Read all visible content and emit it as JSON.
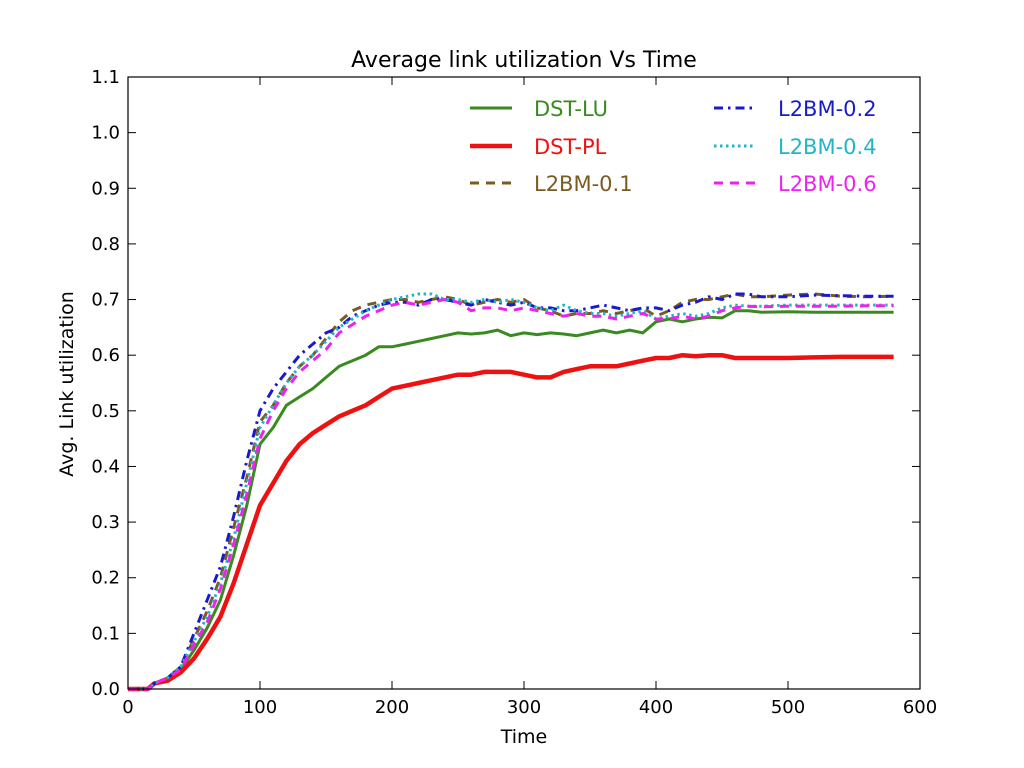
{
  "chart_data": {
    "type": "line",
    "title": "Average link utilization Vs Time",
    "xlabel": "Time",
    "ylabel": "Avg. Link utilization",
    "xlim": [
      0,
      600
    ],
    "ylim": [
      0.0,
      1.1
    ],
    "xticks": [
      "0",
      "100",
      "200",
      "300",
      "400",
      "500",
      "600"
    ],
    "yticks": [
      "0.0",
      "0.1",
      "0.2",
      "0.3",
      "0.4",
      "0.5",
      "0.6",
      "0.7",
      "0.8",
      "0.9",
      "1.0",
      "1.1"
    ],
    "grid": false,
    "legend_position": "top-right",
    "series": [
      {
        "name": "DST-LU",
        "color": "#3a8a22",
        "style": "solid",
        "x": [
          0,
          15,
          20,
          30,
          40,
          50,
          60,
          70,
          80,
          90,
          100,
          110,
          120,
          130,
          140,
          150,
          160,
          170,
          180,
          190,
          200,
          210,
          220,
          230,
          240,
          250,
          260,
          270,
          280,
          290,
          300,
          310,
          320,
          330,
          340,
          350,
          360,
          370,
          380,
          390,
          400,
          410,
          420,
          430,
          440,
          450,
          460,
          470,
          480,
          500,
          520,
          540,
          560,
          580
        ],
        "y": [
          0.0,
          0.0,
          0.01,
          0.02,
          0.035,
          0.07,
          0.11,
          0.16,
          0.24,
          0.33,
          0.44,
          0.47,
          0.51,
          0.525,
          0.54,
          0.56,
          0.58,
          0.59,
          0.6,
          0.615,
          0.615,
          0.62,
          0.625,
          0.63,
          0.635,
          0.64,
          0.638,
          0.64,
          0.645,
          0.635,
          0.64,
          0.637,
          0.64,
          0.638,
          0.635,
          0.64,
          0.645,
          0.64,
          0.645,
          0.64,
          0.66,
          0.665,
          0.66,
          0.665,
          0.668,
          0.667,
          0.68,
          0.68,
          0.677,
          0.678,
          0.677,
          0.677,
          0.677,
          0.677
        ]
      },
      {
        "name": "DST-PL",
        "color": "#ee1111",
        "style": "solid",
        "x": [
          0,
          15,
          20,
          30,
          40,
          50,
          60,
          70,
          80,
          90,
          100,
          110,
          120,
          130,
          140,
          150,
          160,
          170,
          180,
          190,
          200,
          210,
          220,
          230,
          240,
          250,
          260,
          270,
          280,
          290,
          300,
          310,
          320,
          330,
          340,
          350,
          360,
          370,
          380,
          390,
          400,
          410,
          420,
          430,
          440,
          450,
          460,
          470,
          480,
          500,
          520,
          540,
          560,
          580
        ],
        "y": [
          0.0,
          0.0,
          0.01,
          0.015,
          0.03,
          0.055,
          0.09,
          0.13,
          0.19,
          0.26,
          0.33,
          0.37,
          0.41,
          0.44,
          0.46,
          0.475,
          0.49,
          0.5,
          0.51,
          0.525,
          0.54,
          0.545,
          0.55,
          0.555,
          0.56,
          0.565,
          0.565,
          0.57,
          0.57,
          0.57,
          0.565,
          0.56,
          0.56,
          0.57,
          0.575,
          0.58,
          0.58,
          0.58,
          0.585,
          0.59,
          0.595,
          0.595,
          0.6,
          0.598,
          0.6,
          0.6,
          0.595,
          0.595,
          0.595,
          0.595,
          0.596,
          0.597,
          0.597,
          0.597
        ]
      },
      {
        "name": "L2BM-0.1",
        "color": "#7a5b22",
        "style": "dashed",
        "x": [
          0,
          15,
          20,
          30,
          40,
          50,
          60,
          70,
          80,
          90,
          100,
          110,
          120,
          130,
          140,
          150,
          160,
          170,
          180,
          190,
          200,
          210,
          220,
          230,
          240,
          250,
          260,
          270,
          280,
          290,
          300,
          310,
          320,
          330,
          340,
          350,
          360,
          370,
          380,
          390,
          400,
          410,
          420,
          430,
          440,
          450,
          460,
          470,
          480,
          500,
          520,
          540,
          560,
          580
        ],
        "y": [
          0.0,
          0.0,
          0.01,
          0.02,
          0.04,
          0.09,
          0.14,
          0.2,
          0.29,
          0.38,
          0.48,
          0.51,
          0.55,
          0.58,
          0.6,
          0.63,
          0.66,
          0.68,
          0.69,
          0.695,
          0.7,
          0.7,
          0.695,
          0.7,
          0.705,
          0.7,
          0.69,
          0.695,
          0.7,
          0.695,
          0.7,
          0.685,
          0.68,
          0.67,
          0.675,
          0.675,
          0.68,
          0.675,
          0.68,
          0.685,
          0.67,
          0.68,
          0.695,
          0.7,
          0.7,
          0.705,
          0.71,
          0.705,
          0.705,
          0.708,
          0.71,
          0.706,
          0.705,
          0.706
        ]
      },
      {
        "name": "L2BM-0.2",
        "color": "#1a1acc",
        "style": "dashdot",
        "x": [
          0,
          15,
          20,
          30,
          40,
          50,
          60,
          70,
          80,
          90,
          100,
          110,
          120,
          130,
          140,
          150,
          160,
          170,
          180,
          190,
          200,
          210,
          220,
          230,
          240,
          250,
          260,
          270,
          280,
          290,
          300,
          310,
          320,
          330,
          340,
          350,
          360,
          370,
          380,
          390,
          400,
          410,
          420,
          430,
          440,
          450,
          460,
          470,
          480,
          500,
          520,
          540,
          560,
          580
        ],
        "y": [
          0.0,
          0.0,
          0.01,
          0.02,
          0.04,
          0.1,
          0.16,
          0.22,
          0.31,
          0.41,
          0.5,
          0.54,
          0.57,
          0.6,
          0.62,
          0.64,
          0.65,
          0.67,
          0.68,
          0.69,
          0.695,
          0.695,
          0.69,
          0.7,
          0.7,
          0.695,
          0.69,
          0.7,
          0.695,
          0.69,
          0.695,
          0.685,
          0.685,
          0.68,
          0.68,
          0.685,
          0.69,
          0.685,
          0.68,
          0.685,
          0.685,
          0.68,
          0.69,
          0.695,
          0.705,
          0.7,
          0.71,
          0.71,
          0.705,
          0.705,
          0.708,
          0.707,
          0.706,
          0.706
        ]
      },
      {
        "name": "L2BM-0.4",
        "color": "#22b5c8",
        "style": "dotted",
        "x": [
          0,
          15,
          20,
          30,
          40,
          50,
          60,
          70,
          80,
          90,
          100,
          110,
          120,
          130,
          140,
          150,
          160,
          170,
          180,
          190,
          200,
          210,
          220,
          230,
          240,
          250,
          260,
          270,
          280,
          290,
          300,
          310,
          320,
          330,
          340,
          350,
          360,
          370,
          380,
          390,
          400,
          410,
          420,
          430,
          440,
          450,
          460,
          470,
          480,
          500,
          520,
          540,
          560,
          580
        ],
        "y": [
          0.0,
          0.0,
          0.01,
          0.02,
          0.04,
          0.085,
          0.13,
          0.19,
          0.27,
          0.37,
          0.47,
          0.51,
          0.55,
          0.58,
          0.6,
          0.625,
          0.65,
          0.665,
          0.68,
          0.69,
          0.7,
          0.705,
          0.71,
          0.71,
          0.7,
          0.7,
          0.695,
          0.7,
          0.695,
          0.7,
          0.695,
          0.685,
          0.68,
          0.69,
          0.68,
          0.675,
          0.675,
          0.67,
          0.675,
          0.68,
          0.665,
          0.67,
          0.675,
          0.67,
          0.675,
          0.685,
          0.69,
          0.688,
          0.688,
          0.69,
          0.69,
          0.69,
          0.69,
          0.69
        ]
      },
      {
        "name": "L2BM-0.6",
        "color": "#ee22ee",
        "style": "dashed",
        "x": [
          0,
          15,
          20,
          30,
          40,
          50,
          60,
          70,
          80,
          90,
          100,
          110,
          120,
          130,
          140,
          150,
          160,
          170,
          180,
          190,
          200,
          210,
          220,
          230,
          240,
          250,
          260,
          270,
          280,
          290,
          300,
          310,
          320,
          330,
          340,
          350,
          360,
          370,
          380,
          390,
          400,
          410,
          420,
          430,
          440,
          450,
          460,
          470,
          480,
          500,
          520,
          540,
          560,
          580
        ],
        "y": [
          0.0,
          0.0,
          0.01,
          0.02,
          0.035,
          0.08,
          0.12,
          0.18,
          0.26,
          0.35,
          0.45,
          0.5,
          0.54,
          0.57,
          0.59,
          0.61,
          0.64,
          0.655,
          0.67,
          0.68,
          0.69,
          0.695,
          0.69,
          0.695,
          0.7,
          0.695,
          0.68,
          0.685,
          0.685,
          0.68,
          0.685,
          0.68,
          0.675,
          0.67,
          0.675,
          0.67,
          0.67,
          0.665,
          0.67,
          0.675,
          0.665,
          0.665,
          0.67,
          0.665,
          0.67,
          0.68,
          0.685,
          0.688,
          0.687,
          0.688,
          0.688,
          0.688,
          0.689,
          0.689
        ]
      }
    ]
  }
}
